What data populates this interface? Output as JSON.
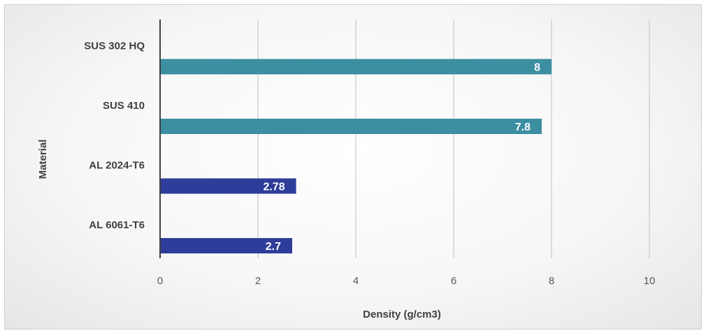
{
  "chart_data": {
    "type": "bar",
    "orientation": "horizontal",
    "categories": [
      "AL 6061-T6",
      "AL 2024-T6",
      "SUS 410",
      "SUS 302 HQ"
    ],
    "values": [
      2.7,
      2.78,
      7.8,
      8
    ],
    "data_labels": [
      "2.7",
      "2.78",
      "7.8",
      "8"
    ],
    "bar_colors": [
      "#2e3d99",
      "#2e3d99",
      "#3c8ea1",
      "#3c8ea1"
    ],
    "xlabel": "Density (g/cm3)",
    "ylabel": "Material",
    "xlim": [
      0,
      10
    ],
    "xticks": [
      0,
      2,
      4,
      6,
      8,
      10
    ],
    "xtick_labels": [
      "0",
      "2",
      "4",
      "6",
      "8",
      "10"
    ],
    "grid": "vertical",
    "legend": "none"
  }
}
